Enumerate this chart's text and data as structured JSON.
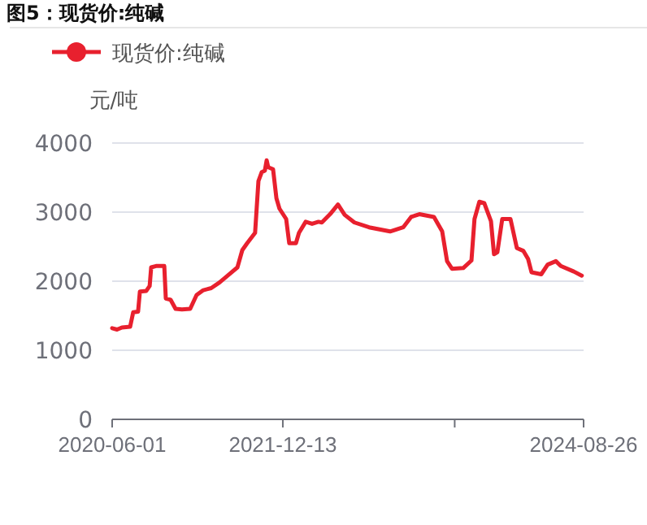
{
  "chart_data": {
    "type": "line",
    "title": "图5：现货价:纯碱",
    "ylabel": "元/吨",
    "legend": "top left",
    "marker": "none",
    "line_style": "solid",
    "grid": "y",
    "ylim": [
      0,
      4000
    ],
    "yticks": [
      0,
      1000,
      2000,
      3000,
      4000
    ],
    "xlim": [
      "2020-06-01",
      "2024-08-26"
    ],
    "xticks": [
      "2020-06-01",
      "2021-12-13",
      {
        "value": "2023-06-30",
        "label": null
      },
      "2024-08-26"
    ],
    "x": [
      "2020-06-01",
      "2020-06-17",
      "2020-07-03",
      "2020-07-30",
      "2020-08-09",
      "2020-08-25",
      "2020-08-31",
      "2020-09-21",
      "2020-10-02",
      "2020-10-07",
      "2020-10-23",
      "2020-11-19",
      "2020-11-24",
      "2020-12-10",
      "2020-12-26",
      "2021-01-16",
      "2021-02-12",
      "2021-03-05",
      "2021-03-27",
      "2021-04-22",
      "2021-05-19",
      "2021-06-15",
      "2021-07-17",
      "2021-08-02",
      "2021-08-18",
      "2021-09-13",
      "2021-09-24",
      "2021-10-05",
      "2021-10-15",
      "2021-10-21",
      "2021-10-26",
      "2021-11-11",
      "2021-11-22",
      "2021-12-02",
      "2021-12-24",
      "2022-01-03",
      "2022-01-25",
      "2022-02-04",
      "2022-02-26",
      "2022-03-19",
      "2022-04-09",
      "2022-04-20",
      "2022-05-17",
      "2022-06-12",
      "2022-07-04",
      "2022-08-05",
      "2022-09-22",
      "2022-11-30",
      "2023-01-12",
      "2023-02-07",
      "2023-03-06",
      "2023-04-23",
      "2023-05-20",
      "2023-06-05",
      "2023-06-21",
      "2023-07-28",
      "2023-08-24",
      "2023-09-03",
      "2023-09-19",
      "2023-10-05",
      "2023-10-27",
      "2023-11-06",
      "2023-11-17",
      "2023-12-03",
      "2023-12-30",
      "2024-01-20",
      "2024-02-10",
      "2024-02-26",
      "2024-03-08",
      "2024-04-09",
      "2024-04-30",
      "2024-05-27",
      "2024-06-12",
      "2024-07-25",
      "2024-08-20"
    ],
    "series": [
      {
        "name": "现货价:纯碱",
        "color": "#e8202e",
        "values": [
          1320,
          1300,
          1330,
          1340,
          1550,
          1560,
          1850,
          1860,
          1930,
          2200,
          2220,
          2220,
          1750,
          1730,
          1600,
          1590,
          1600,
          1800,
          1870,
          1900,
          1980,
          2080,
          2200,
          2450,
          2550,
          2700,
          3450,
          3580,
          3600,
          3750,
          3650,
          3620,
          3200,
          3050,
          2900,
          2550,
          2550,
          2700,
          2860,
          2830,
          2860,
          2850,
          2970,
          3110,
          2960,
          2850,
          2780,
          2720,
          2780,
          2930,
          2970,
          2930,
          2720,
          2290,
          2180,
          2190,
          2300,
          2900,
          3150,
          3130,
          2870,
          2390,
          2420,
          2900,
          2900,
          2480,
          2440,
          2320,
          2130,
          2100,
          2240,
          2290,
          2220,
          2140,
          2080
        ]
      }
    ]
  }
}
